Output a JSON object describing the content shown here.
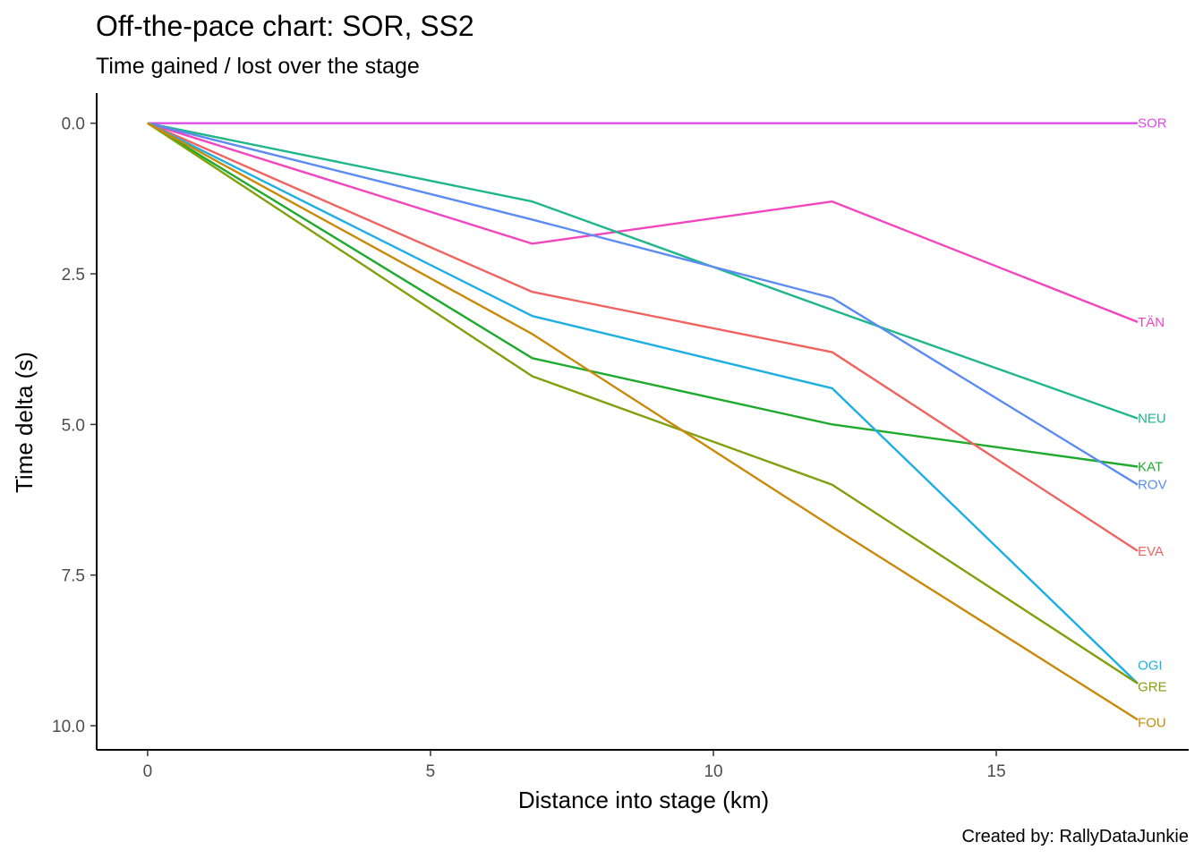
{
  "chart_data": {
    "type": "line",
    "title": "Off-the-pace chart: SOR, SS2",
    "subtitle": "Time gained / lost over the stage",
    "xlabel": "Distance into stage (km)",
    "ylabel": "Time delta (s)",
    "caption": "Created by: RallyDataJunkie",
    "xlim": [
      -0.9,
      18.4
    ],
    "ylim": [
      -0.5,
      10.4
    ],
    "y_reversed": true,
    "grid": false,
    "legend": "direct labels at line ends",
    "x_ticks": [
      0,
      5,
      10,
      15
    ],
    "x_tick_labels": [
      "0",
      "5",
      "10",
      "15"
    ],
    "y_ticks": [
      0,
      2.5,
      5,
      7.5,
      10
    ],
    "y_tick_labels": [
      "0.0",
      "2.5",
      "5.0",
      "7.5",
      "10.0"
    ],
    "x": [
      0,
      6.8,
      12.1,
      17.5
    ],
    "series": [
      {
        "name": "SOR",
        "color": "#DE4CE6",
        "values": [
          0,
          0,
          0,
          0
        ]
      },
      {
        "name": "TÄN",
        "color": "#F146BE",
        "values": [
          0,
          2.0,
          1.3,
          3.3
        ]
      },
      {
        "name": "NEU",
        "color": "#1FB68A",
        "values": [
          0,
          1.3,
          3.1,
          4.9
        ]
      },
      {
        "name": "KAT",
        "color": "#1EAA2C",
        "values": [
          0,
          3.9,
          5.0,
          5.7
        ]
      },
      {
        "name": "ROV",
        "color": "#5C8CF2",
        "values": [
          0,
          1.6,
          2.9,
          6.0
        ]
      },
      {
        "name": "EVA",
        "color": "#EF6460",
        "values": [
          0,
          2.8,
          3.8,
          7.1
        ]
      },
      {
        "name": "OGI",
        "color": "#1DAFE3",
        "values": [
          0,
          3.2,
          4.4,
          9.3
        ]
      },
      {
        "name": "GRE",
        "color": "#80A00E",
        "values": [
          0,
          4.2,
          6.0,
          9.3
        ]
      },
      {
        "name": "FOU",
        "color": "#C98A0B",
        "values": [
          0,
          3.5,
          6.7,
          9.9
        ]
      }
    ],
    "end_labels": [
      {
        "text": "SOR",
        "y": 0
      },
      {
        "text": "TÄN",
        "y": 3.3
      },
      {
        "text": "NEU",
        "y": 4.9
      },
      {
        "text": "KAT",
        "y": 5.7
      },
      {
        "text": "ROV",
        "y": 6.0
      },
      {
        "text": "EVA",
        "y": 7.1
      },
      {
        "text": "OGI",
        "y": 9.0
      },
      {
        "text": "GRE",
        "y": 9.35
      },
      {
        "text": "FOU",
        "y": 9.95
      }
    ]
  }
}
